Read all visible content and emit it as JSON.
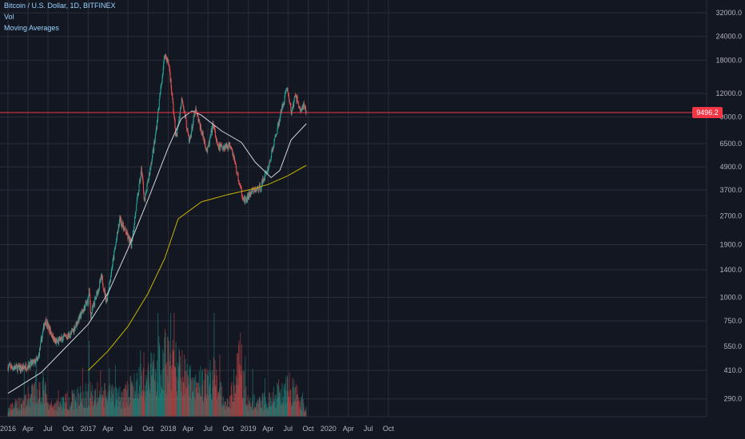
{
  "legend": {
    "symbol": "Bitcoin / U.S. Dollar, 1D, BITFINEX",
    "indicator1": "Vol",
    "indicator2": "Moving Averages"
  },
  "colors": {
    "background": "#131722",
    "grid": "#2a2e39",
    "candle_up": "#26a69a",
    "candle_down": "#ef5350",
    "ma_long": "#c8b400",
    "ma_short": "#d1d4dc",
    "price_line": "#f23645",
    "axis_text": "#b2b5be"
  },
  "chart_data": {
    "type": "candlestick",
    "x_tick_labels": [
      "2016",
      "Apr",
      "Jul",
      "Oct",
      "2017",
      "Apr",
      "Jul",
      "Oct",
      "2018",
      "Apr",
      "Jul",
      "Oct",
      "2019",
      "Apr",
      "Jul",
      "Oct",
      "2020",
      "Apr",
      "Jul",
      "Oct"
    ],
    "y_tick_labels": [
      "32000.0",
      "24000.0",
      "18000.0",
      "12000.0",
      "9000.0",
      "6500.0",
      "4900.0",
      "3700.0",
      "2700.0",
      "1900.0",
      "1400.0",
      "1000.0",
      "750.0",
      "550.0",
      "410.0",
      "290.0"
    ],
    "y_scale": "log",
    "last_price": "9496.2",
    "price_anchor_points": [
      {
        "date": "2016-01-01",
        "price": 430
      },
      {
        "date": "2016-03-01",
        "price": 420
      },
      {
        "date": "2016-05-15",
        "price": 460
      },
      {
        "date": "2016-06-18",
        "price": 760
      },
      {
        "date": "2016-08-05",
        "price": 575
      },
      {
        "date": "2016-10-15",
        "price": 640
      },
      {
        "date": "2016-12-31",
        "price": 960
      },
      {
        "date": "2017-01-05",
        "price": 1100
      },
      {
        "date": "2017-01-12",
        "price": 800
      },
      {
        "date": "2017-03-03",
        "price": 1280
      },
      {
        "date": "2017-03-25",
        "price": 950
      },
      {
        "date": "2017-05-25",
        "price": 2600
      },
      {
        "date": "2017-07-16",
        "price": 1900
      },
      {
        "date": "2017-09-01",
        "price": 4800
      },
      {
        "date": "2017-09-15",
        "price": 3200
      },
      {
        "date": "2017-11-01",
        "price": 6800
      },
      {
        "date": "2017-12-16",
        "price": 19500
      },
      {
        "date": "2018-01-05",
        "price": 16800
      },
      {
        "date": "2018-02-06",
        "price": 6900
      },
      {
        "date": "2018-03-05",
        "price": 11500
      },
      {
        "date": "2018-04-06",
        "price": 6600
      },
      {
        "date": "2018-05-05",
        "price": 9800
      },
      {
        "date": "2018-06-28",
        "price": 5900
      },
      {
        "date": "2018-07-25",
        "price": 8300
      },
      {
        "date": "2018-08-14",
        "price": 6200
      },
      {
        "date": "2018-10-15",
        "price": 6400
      },
      {
        "date": "2018-11-25",
        "price": 3800
      },
      {
        "date": "2018-12-15",
        "price": 3200
      },
      {
        "date": "2019-01-15",
        "price": 3600
      },
      {
        "date": "2019-02-25",
        "price": 3800
      },
      {
        "date": "2019-04-05",
        "price": 5000
      },
      {
        "date": "2019-05-15",
        "price": 8000
      },
      {
        "date": "2019-06-26",
        "price": 13000
      },
      {
        "date": "2019-07-16",
        "price": 9500
      },
      {
        "date": "2019-08-05",
        "price": 11800
      },
      {
        "date": "2019-08-28",
        "price": 9600
      },
      {
        "date": "2019-09-10",
        "price": 10300
      },
      {
        "date": "2019-09-23",
        "price": 9496
      }
    ],
    "moving_averages": [
      {
        "name": "",
        "color": "#d1d4dc",
        "points": [
          {
            "date": "2016-01-01",
            "price": 310
          },
          {
            "date": "2016-06-01",
            "price": 400
          },
          {
            "date": "2016-10-01",
            "price": 560
          },
          {
            "date": "2017-01-01",
            "price": 720
          },
          {
            "date": "2017-04-01",
            "price": 1050
          },
          {
            "date": "2017-07-01",
            "price": 1800
          },
          {
            "date": "2017-10-01",
            "price": 3300
          },
          {
            "date": "2018-01-01",
            "price": 6200
          },
          {
            "date": "2018-03-01",
            "price": 8800
          },
          {
            "date": "2018-04-20",
            "price": 9700
          },
          {
            "date": "2018-06-01",
            "price": 9200
          },
          {
            "date": "2018-09-01",
            "price": 7600
          },
          {
            "date": "2018-12-01",
            "price": 6600
          },
          {
            "date": "2019-02-01",
            "price": 5200
          },
          {
            "date": "2019-04-15",
            "price": 4300
          },
          {
            "date": "2019-05-25",
            "price": 4700
          },
          {
            "date": "2019-07-15",
            "price": 6800
          },
          {
            "date": "2019-09-23",
            "price": 8300
          }
        ]
      },
      {
        "name": "",
        "color": "#c8b400",
        "points": [
          {
            "date": "2017-01-01",
            "price": 410
          },
          {
            "date": "2017-04-01",
            "price": 520
          },
          {
            "date": "2017-07-01",
            "price": 700
          },
          {
            "date": "2017-10-01",
            "price": 1050
          },
          {
            "date": "2017-12-15",
            "price": 1600
          },
          {
            "date": "2018-02-15",
            "price": 2600
          },
          {
            "date": "2018-06-01",
            "price": 3200
          },
          {
            "date": "2018-10-01",
            "price": 3500
          },
          {
            "date": "2019-01-01",
            "price": 3700
          },
          {
            "date": "2019-04-01",
            "price": 3950
          },
          {
            "date": "2019-07-01",
            "price": 4400
          },
          {
            "date": "2019-09-23",
            "price": 5000
          }
        ]
      }
    ],
    "volume_profile": [
      {
        "date": "2016-01-01",
        "vol": 0.1
      },
      {
        "date": "2016-06-15",
        "vol": 0.45
      },
      {
        "date": "2016-07-01",
        "vol": 0.15
      },
      {
        "date": "2017-01-05",
        "vol": 0.35
      },
      {
        "date": "2017-06-01",
        "vol": 0.3
      },
      {
        "date": "2017-09-15",
        "vol": 0.55
      },
      {
        "date": "2017-12-20",
        "vol": 0.9
      },
      {
        "date": "2018-02-05",
        "vol": 0.75
      },
      {
        "date": "2018-05-01",
        "vol": 0.45
      },
      {
        "date": "2018-07-25",
        "vol": 0.6
      },
      {
        "date": "2018-10-01",
        "vol": 0.15
      },
      {
        "date": "2018-11-25",
        "vol": 0.85
      },
      {
        "date": "2019-01-01",
        "vol": 0.2
      },
      {
        "date": "2019-04-05",
        "vol": 0.25
      },
      {
        "date": "2019-06-26",
        "vol": 0.5
      },
      {
        "date": "2019-09-23",
        "vol": 0.12
      }
    ]
  }
}
